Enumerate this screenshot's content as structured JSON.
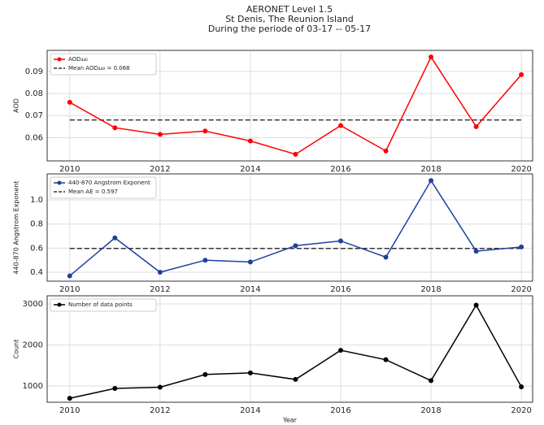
{
  "title": [
    "AERONET Level 1.5",
    "St Denis, The Reunion Island",
    "During the periode of 03-17 -- 05-17"
  ],
  "chart_data": [
    {
      "type": "line",
      "y_label": "AOD",
      "x": [
        2010,
        2011,
        2012,
        2013,
        2014,
        2015,
        2016,
        2017,
        2018,
        2019,
        2020
      ],
      "series": [
        {
          "name": "AOD₄₄₀",
          "color": "#ff0000",
          "values": [
            0.076,
            0.0645,
            0.0615,
            0.063,
            0.0585,
            0.0525,
            0.0655,
            0.054,
            0.0965,
            0.065,
            0.0885
          ]
        }
      ],
      "mean": {
        "name": "Mean AOD₄₄₀ = 0.068",
        "value": 0.068,
        "color": "#333333"
      },
      "xlim": [
        2009.5,
        2020.25
      ],
      "xticks": [
        2010,
        2012,
        2014,
        2016,
        2018,
        2020
      ],
      "ylim": [
        0.0495,
        0.0995
      ],
      "yticks": [
        0.06,
        0.07,
        0.08,
        0.09
      ],
      "grid": true,
      "legend": "upper left"
    },
    {
      "type": "line",
      "y_label": "440-870 Angstrom Exponent",
      "x": [
        2010,
        2011,
        2012,
        2013,
        2014,
        2015,
        2016,
        2017,
        2018,
        2019,
        2020
      ],
      "series": [
        {
          "name": "440-870 Angstrom Exponent",
          "color": "#1f3fa0",
          "values": [
            0.37,
            0.685,
            0.4,
            0.5,
            0.485,
            0.62,
            0.66,
            0.525,
            1.16,
            0.575,
            0.61
          ]
        }
      ],
      "mean": {
        "name": "Mean AE = 0.597",
        "value": 0.597,
        "color": "#333333"
      },
      "xlim": [
        2009.5,
        2020.25
      ],
      "xticks": [
        2010,
        2012,
        2014,
        2016,
        2018,
        2020
      ],
      "ylim": [
        0.326,
        1.216
      ],
      "yticks": [
        {
          "value": 0.4,
          "label": "0.4"
        },
        {
          "value": 0.6,
          "label": "0.6"
        },
        {
          "value": 0.8,
          "label": "0.8"
        },
        {
          "value": 1.0,
          "label": "1.0"
        }
      ],
      "grid": true,
      "legend": "upper left"
    },
    {
      "type": "line",
      "y_label": "Count",
      "x_label": "Year",
      "x": [
        2010,
        2011,
        2012,
        2013,
        2014,
        2015,
        2016,
        2017,
        2018,
        2019,
        2020
      ],
      "series": [
        {
          "name": "Number of data points",
          "color": "#000000",
          "values": [
            700,
            940,
            970,
            1280,
            1320,
            1160,
            1870,
            1640,
            1130,
            2970,
            980
          ]
        }
      ],
      "xlim": [
        2009.5,
        2020.25
      ],
      "xticks": [
        2010,
        2012,
        2014,
        2016,
        2018,
        2020
      ],
      "ylim": [
        604,
        3198
      ],
      "yticks": [
        1000,
        2000,
        3000
      ],
      "grid": true,
      "legend": "upper left"
    }
  ]
}
